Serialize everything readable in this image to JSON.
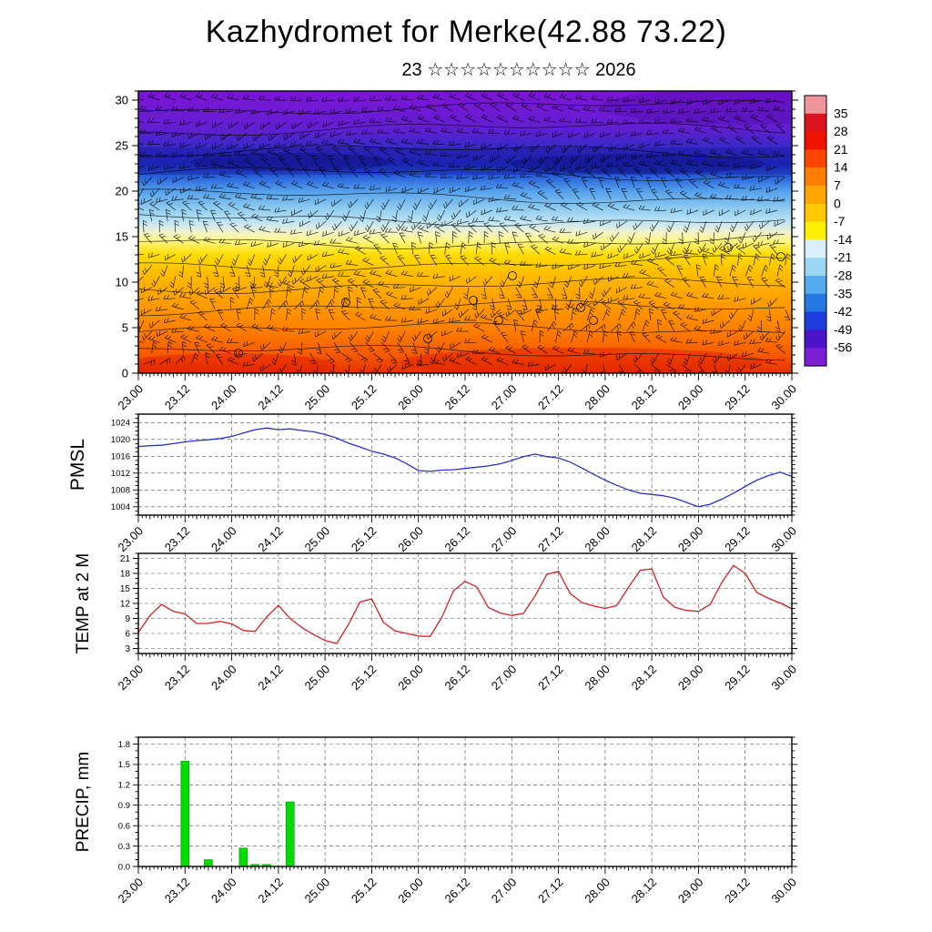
{
  "title": "Kazhydromet for Merke(42.88 73.22)",
  "subtitle": "23 ☆☆☆☆☆☆☆☆☆☆ 2026",
  "x_axis": {
    "tick_labels": [
      "23.00",
      "23.12",
      "24.00",
      "24.12",
      "25.00",
      "25.12",
      "26.00",
      "26.12",
      "27.00",
      "27.12",
      "28.00",
      "28.12",
      "29.00",
      "29.12",
      "30.00"
    ],
    "step_hours": 3,
    "total_hours": 168
  },
  "chart_data": [
    {
      "type": "heatmap",
      "name": "cross-section",
      "description": "Time-height cross section of temperature (color shaded) with wind barbs and black contour lines; calm winds shown as circles",
      "ylim": [
        0,
        31
      ],
      "y_ticks": [
        0,
        5,
        10,
        15,
        20,
        25,
        30
      ],
      "colorbar_labels": [
        "35",
        "28",
        "21",
        "14",
        "7",
        "0",
        "-7",
        "-14",
        "-21",
        "-28",
        "-35",
        "-42",
        "-49",
        "-56"
      ],
      "colorbar_colors": [
        "#f0969b",
        "#dc1420",
        "#f01400",
        "#ff4600",
        "#ff7d00",
        "#ffa500",
        "#ffc800",
        "#fff000",
        "#d7f0fa",
        "#9bd7f5",
        "#55aaf0",
        "#2378e1",
        "#1e3cdc",
        "#4b14c8",
        "#7d1ed7"
      ],
      "gradient_stops": [
        {
          "level": 0,
          "color": "#e63000"
        },
        {
          "level": 2,
          "color": "#f55a00"
        },
        {
          "level": 5,
          "color": "#ff8200"
        },
        {
          "level": 8,
          "color": "#ffa000"
        },
        {
          "level": 11,
          "color": "#ffbe00"
        },
        {
          "level": 13,
          "color": "#ffdc00"
        },
        {
          "level": 14.5,
          "color": "#fff680"
        },
        {
          "level": 15.5,
          "color": "#f2f2cd"
        },
        {
          "level": 16.5,
          "color": "#c3e6f5"
        },
        {
          "level": 18,
          "color": "#91cdf0"
        },
        {
          "level": 20,
          "color": "#55a0eb"
        },
        {
          "level": 21.5,
          "color": "#2a64dc"
        },
        {
          "level": 23,
          "color": "#1e28c3"
        },
        {
          "level": 25,
          "color": "#3c28c8"
        },
        {
          "level": 27,
          "color": "#641ed2"
        },
        {
          "level": 31,
          "color": "#7d14d7"
        }
      ]
    },
    {
      "type": "line",
      "name": "pmsl",
      "ylabel": "PMSL",
      "line_color": "#2a32c8",
      "ylim": [
        1002,
        1026
      ],
      "y_ticks": [
        "1004",
        "1008",
        "1012",
        "1016",
        "1020",
        "1024"
      ],
      "values": [
        1018.3,
        1018.5,
        1018.6,
        1019.0,
        1019.4,
        1019.7,
        1019.9,
        1020.2,
        1020.7,
        1021.5,
        1022.3,
        1022.7,
        1022.3,
        1022.5,
        1022.1,
        1021.8,
        1021.2,
        1020.3,
        1019.1,
        1018.2,
        1017.2,
        1016.5,
        1015.6,
        1014.2,
        1012.6,
        1012.4,
        1012.7,
        1012.8,
        1013.1,
        1013.4,
        1013.7,
        1014.2,
        1015.0,
        1015.9,
        1016.5,
        1015.9,
        1015.6,
        1014.6,
        1013.2,
        1011.7,
        1010.3,
        1009.1,
        1008.0,
        1007.2,
        1006.9,
        1006.6,
        1006.0,
        1005.0,
        1004.0,
        1004.6,
        1005.8,
        1007.2,
        1008.8,
        1010.3,
        1011.4,
        1012.2,
        1011.2
      ]
    },
    {
      "type": "line",
      "name": "temp2m",
      "ylabel": "TEMP at 2 M",
      "line_color": "#d02323",
      "ylim": [
        2,
        22
      ],
      "y_ticks": [
        "3",
        "6",
        "9",
        "12",
        "15",
        "18",
        "21"
      ],
      "values": [
        6.2,
        9.6,
        11.8,
        10.4,
        9.9,
        8.0,
        8.0,
        8.4,
        7.9,
        6.6,
        6.4,
        9.3,
        11.6,
        9.0,
        7.2,
        5.8,
        4.6,
        4.0,
        7.8,
        12.3,
        12.9,
        8.2,
        6.5,
        6.0,
        5.5,
        5.4,
        9.2,
        14.5,
        16.4,
        15.3,
        11.2,
        10.1,
        9.6,
        10.0,
        13.5,
        17.8,
        18.4,
        14.0,
        12.2,
        11.5,
        11.0,
        11.6,
        15.2,
        18.6,
        18.9,
        13.2,
        11.2,
        10.6,
        10.4,
        11.8,
        16.2,
        19.6,
        18.0,
        14.2,
        13.0,
        12.1,
        10.9
      ]
    },
    {
      "type": "bar",
      "name": "precip",
      "ylabel": "PRECIP, mm",
      "bar_color": "#00dc00",
      "ylim": [
        0,
        1.9
      ],
      "y_ticks": [
        "0.0",
        "0.3",
        "0.6",
        "0.9",
        "1.2",
        "1.5",
        "1.8"
      ],
      "values": [
        0,
        0,
        0,
        0,
        1.55,
        0,
        0.1,
        0,
        0,
        0.27,
        0.03,
        0.03,
        0,
        0.95,
        0,
        0,
        0,
        0,
        0,
        0,
        0,
        0,
        0,
        0,
        0,
        0,
        0,
        0,
        0,
        0,
        0,
        0,
        0,
        0,
        0,
        0,
        0,
        0,
        0,
        0,
        0,
        0,
        0,
        0,
        0,
        0,
        0,
        0,
        0,
        0,
        0,
        0,
        0,
        0,
        0,
        0,
        0
      ]
    }
  ]
}
